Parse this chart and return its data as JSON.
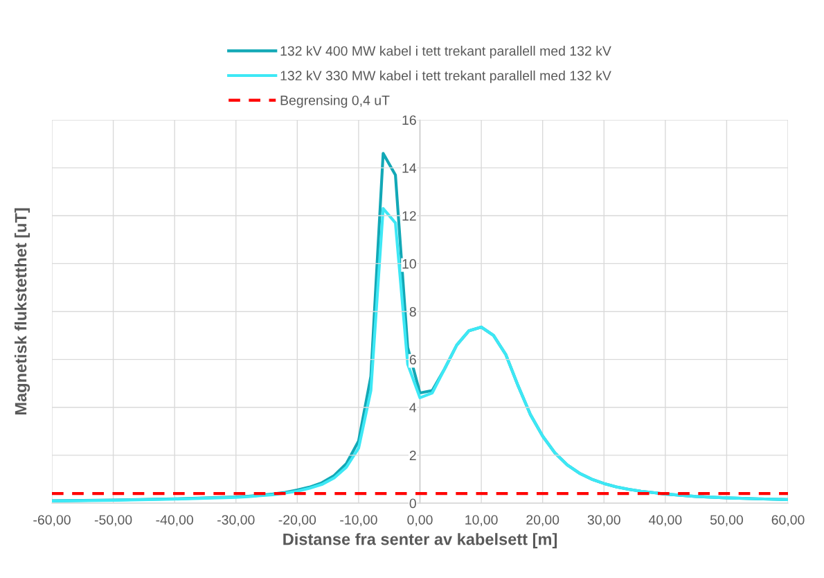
{
  "chart_data": {
    "type": "line",
    "xlabel": "Distanse fra senter av kabelsett [m]",
    "ylabel": "Magnetisk flukstetthet [uT]",
    "x": [
      -60,
      -50,
      -40,
      -30,
      -28,
      -26,
      -24,
      -22,
      -20,
      -18,
      -16,
      -14,
      -12,
      -10,
      -8,
      -6,
      -4,
      -2,
      0,
      2,
      4,
      6,
      8,
      10,
      12,
      14,
      16,
      18,
      20,
      22,
      24,
      26,
      28,
      30,
      32,
      34,
      36,
      38,
      40,
      45,
      50,
      55,
      60
    ],
    "series": [
      {
        "name": "132 kV 400 MW kabel i tett trekant parallell med 132 kV",
        "color": "#12a8b6",
        "line_style": "solid",
        "values": [
          0.1,
          0.13,
          0.18,
          0.26,
          0.29,
          0.33,
          0.38,
          0.45,
          0.55,
          0.67,
          0.85,
          1.15,
          1.65,
          2.6,
          5.3,
          14.6,
          13.7,
          6.5,
          4.6,
          4.7,
          5.6,
          6.6,
          7.2,
          7.35,
          7.0,
          6.2,
          4.9,
          3.7,
          2.8,
          2.1,
          1.6,
          1.25,
          1.0,
          0.82,
          0.68,
          0.58,
          0.5,
          0.44,
          0.38,
          0.28,
          0.22,
          0.18,
          0.15
        ]
      },
      {
        "name": "132 kV 330 MW kabel i tett trekant parallell med 132 kV",
        "color": "#3de8f5",
        "line_style": "solid",
        "values": [
          0.09,
          0.12,
          0.17,
          0.24,
          0.27,
          0.31,
          0.35,
          0.42,
          0.5,
          0.62,
          0.78,
          1.05,
          1.5,
          2.3,
          4.7,
          12.3,
          11.7,
          5.8,
          4.4,
          4.6,
          5.6,
          6.6,
          7.2,
          7.35,
          7.0,
          6.2,
          4.9,
          3.7,
          2.8,
          2.1,
          1.6,
          1.25,
          1.0,
          0.82,
          0.68,
          0.58,
          0.5,
          0.44,
          0.38,
          0.28,
          0.22,
          0.18,
          0.15
        ]
      },
      {
        "name": "Begrensing 0,4 uT",
        "color": "#ff0000",
        "line_style": "dashed",
        "x": [
          -60,
          60
        ],
        "values": [
          0.4,
          0.4
        ]
      }
    ],
    "xlim": [
      -60,
      60
    ],
    "xticks": [
      {
        "value": -60,
        "label": "-60,00"
      },
      {
        "value": -50,
        "label": "-50,00"
      },
      {
        "value": -40,
        "label": "-40,00"
      },
      {
        "value": -30,
        "label": "-30,00"
      },
      {
        "value": -20,
        "label": "-20,00"
      },
      {
        "value": -10,
        "label": "-10,00"
      },
      {
        "value": 0,
        "label": "0,00"
      },
      {
        "value": 10,
        "label": "10,00"
      },
      {
        "value": 20,
        "label": "20,00"
      },
      {
        "value": 30,
        "label": "30,00"
      },
      {
        "value": 40,
        "label": "40,00"
      },
      {
        "value": 50,
        "label": "50,00"
      },
      {
        "value": 60,
        "label": "60,00"
      }
    ],
    "ylim": [
      0,
      16
    ],
    "yticks": [
      0,
      2,
      4,
      6,
      8,
      10,
      12,
      14,
      16
    ],
    "grid": true,
    "legend": "top",
    "marker": "none"
  }
}
